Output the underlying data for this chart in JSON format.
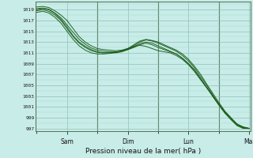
{
  "title": "Pression niveau de la mer( hPa )",
  "background_color": "#c8ece8",
  "grid_minor_color": "#a8d8d0",
  "grid_major_color": "#90c0b8",
  "line_color": "#1a5c1a",
  "ylim": [
    996.5,
    1020.5
  ],
  "yticks": [
    997,
    999,
    1001,
    1003,
    1005,
    1007,
    1009,
    1011,
    1013,
    1015,
    1017,
    1019
  ],
  "day_labels": [
    "Sam",
    "Dim",
    "Lun",
    "Mar"
  ],
  "series": [
    [
      1019.5,
      1019.6,
      1019.4,
      1018.8,
      1018.0,
      1017.0,
      1015.5,
      1014.0,
      1013.0,
      1012.3,
      1011.8,
      1011.6,
      1011.5,
      1011.4,
      1011.5,
      1011.8,
      1012.2,
      1012.4,
      1012.2,
      1011.8,
      1011.4,
      1011.2,
      1011.0,
      1010.5,
      1009.8,
      1008.8,
      1007.5,
      1006.0,
      1004.5,
      1003.0,
      1001.5,
      1000.0,
      998.8,
      997.8,
      997.2,
      997.0
    ],
    [
      1019.2,
      1019.3,
      1019.1,
      1018.4,
      1017.5,
      1016.2,
      1014.8,
      1013.5,
      1012.6,
      1011.9,
      1011.5,
      1011.3,
      1011.2,
      1011.2,
      1011.3,
      1011.6,
      1012.0,
      1012.5,
      1012.8,
      1012.5,
      1012.0,
      1011.6,
      1011.2,
      1010.8,
      1010.0,
      1009.0,
      1007.8,
      1006.2,
      1004.6,
      1003.0,
      1001.4,
      1000.0,
      998.8,
      997.8,
      997.3,
      997.0
    ],
    [
      1018.8,
      1019.0,
      1018.7,
      1018.0,
      1017.0,
      1015.5,
      1014.0,
      1012.8,
      1012.0,
      1011.4,
      1011.1,
      1011.0,
      1011.0,
      1011.1,
      1011.3,
      1011.7,
      1012.3,
      1013.0,
      1013.4,
      1013.2,
      1012.8,
      1012.3,
      1011.8,
      1011.3,
      1010.5,
      1009.5,
      1008.2,
      1006.6,
      1005.0,
      1003.2,
      1001.5,
      1000.0,
      998.8,
      997.6,
      997.1,
      997.0
    ],
    [
      1018.5,
      1018.7,
      1018.4,
      1017.6,
      1016.5,
      1015.0,
      1013.5,
      1012.3,
      1011.5,
      1011.0,
      1010.8,
      1010.8,
      1010.9,
      1011.1,
      1011.4,
      1011.8,
      1012.5,
      1013.2,
      1013.5,
      1013.3,
      1013.0,
      1012.5,
      1012.0,
      1011.5,
      1010.8,
      1009.8,
      1008.5,
      1007.0,
      1005.2,
      1003.5,
      1001.8,
      1000.2,
      999.0,
      997.8,
      997.2,
      997.0
    ],
    [
      1019.0,
      1019.2,
      1019.0,
      1018.3,
      1017.2,
      1015.8,
      1014.2,
      1013.0,
      1012.2,
      1011.6,
      1011.2,
      1011.0,
      1011.0,
      1011.0,
      1011.2,
      1011.6,
      1012.1,
      1012.7,
      1013.0,
      1012.8,
      1012.3,
      1011.8,
      1011.3,
      1010.8,
      1010.0,
      1009.0,
      1007.8,
      1006.2,
      1004.6,
      1002.9,
      1001.3,
      999.8,
      998.6,
      997.5,
      997.0,
      997.0
    ]
  ]
}
